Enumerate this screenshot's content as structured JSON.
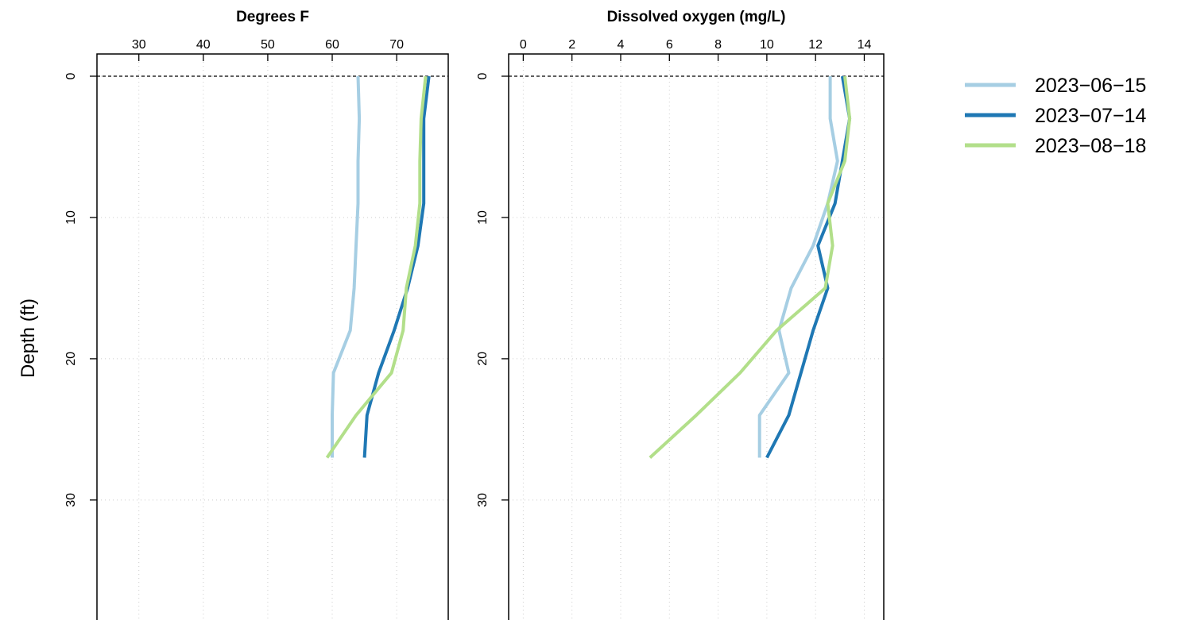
{
  "shared_ylabel": "Depth (ft)",
  "colors": {
    "grid": "#cccccc",
    "axis": "#000000"
  },
  "legend": [
    {
      "label": "2023−06−15",
      "color": "#a6cee3"
    },
    {
      "label": "2023−07−14",
      "color": "#1f78b4"
    },
    {
      "label": "2023−08−18",
      "color": "#b2df8a"
    }
  ],
  "chart_data": [
    {
      "type": "line",
      "title": "Degrees F",
      "xlabel": "",
      "ylabel": "Depth (ft)",
      "xlim": [
        23.5,
        78
      ],
      "ylim": [
        0,
        39
      ],
      "y_reversed": true,
      "x_ticks": [
        30,
        40,
        50,
        60,
        70
      ],
      "y_ticks": [
        0,
        10,
        20,
        30
      ],
      "grid": true,
      "reference_line_depth": 0,
      "series": [
        {
          "name": "2023−06−15",
          "color": "#a6cee3",
          "points": [
            [
              64,
              0
            ],
            [
              64.2,
              3
            ],
            [
              64,
              6
            ],
            [
              64,
              9
            ],
            [
              63.7,
              12
            ],
            [
              63.4,
              15
            ],
            [
              62.8,
              18
            ],
            [
              60.2,
              21
            ],
            [
              60,
              24
            ],
            [
              60,
              27
            ]
          ]
        },
        {
          "name": "2023−07−14",
          "color": "#1f78b4",
          "points": [
            [
              75,
              0
            ],
            [
              74.2,
              3
            ],
            [
              74.2,
              6
            ],
            [
              74.2,
              9
            ],
            [
              73.3,
              12
            ],
            [
              71.7,
              15
            ],
            [
              69.6,
              18
            ],
            [
              67.2,
              21
            ],
            [
              65.4,
              24
            ],
            [
              65,
              27
            ]
          ]
        },
        {
          "name": "2023−08−18",
          "color": "#b2df8a",
          "points": [
            [
              74.5,
              0
            ],
            [
              73.8,
              3
            ],
            [
              73.6,
              6
            ],
            [
              73.6,
              9
            ],
            [
              72.9,
              12
            ],
            [
              71.5,
              15
            ],
            [
              71,
              18
            ],
            [
              69.2,
              21
            ],
            [
              63.7,
              24
            ],
            [
              59.2,
              27
            ]
          ]
        }
      ]
    },
    {
      "type": "line",
      "title": "Dissolved oxygen (mg/L)",
      "xlabel": "",
      "ylabel": "Depth (ft)",
      "xlim": [
        -0.6,
        14.8
      ],
      "ylim": [
        0,
        39
      ],
      "y_reversed": true,
      "x_ticks": [
        0,
        2,
        4,
        6,
        8,
        10,
        12,
        14
      ],
      "y_ticks": [
        0,
        10,
        20,
        30
      ],
      "grid": true,
      "reference_line_depth": 0,
      "series": [
        {
          "name": "2023−06−15",
          "color": "#a6cee3",
          "points": [
            [
              12.6,
              0
            ],
            [
              12.6,
              3
            ],
            [
              12.9,
              6
            ],
            [
              12.5,
              9
            ],
            [
              11.9,
              12
            ],
            [
              11,
              15
            ],
            [
              10.5,
              18
            ],
            [
              10.9,
              21
            ],
            [
              9.7,
              24
            ],
            [
              9.7,
              27
            ]
          ]
        },
        {
          "name": "2023−07−14",
          "color": "#1f78b4",
          "points": [
            [
              13.1,
              0
            ],
            [
              13.4,
              3
            ],
            [
              13.1,
              6
            ],
            [
              12.8,
              9
            ],
            [
              12.1,
              12
            ],
            [
              12.5,
              15
            ],
            [
              11.9,
              18
            ],
            [
              11.4,
              21
            ],
            [
              10.9,
              24
            ],
            [
              10,
              27
            ]
          ]
        },
        {
          "name": "2023−08−18",
          "color": "#b2df8a",
          "points": [
            [
              13.2,
              0
            ],
            [
              13.4,
              3
            ],
            [
              13.2,
              6
            ],
            [
              12.5,
              9
            ],
            [
              12.7,
              12
            ],
            [
              12.4,
              15
            ],
            [
              10.4,
              18
            ],
            [
              8.9,
              21
            ],
            [
              7.1,
              24
            ],
            [
              5.2,
              27
            ]
          ]
        }
      ]
    }
  ]
}
